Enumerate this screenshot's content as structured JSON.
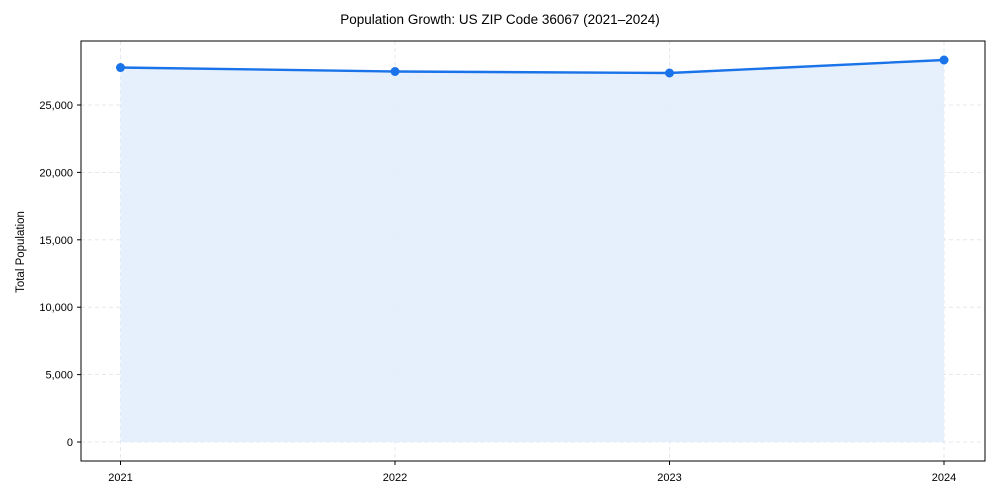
{
  "chart_data": {
    "type": "line",
    "title": "Population Growth: US ZIP Code 36067 (2021–2024)",
    "xlabel": "",
    "ylabel": "Total Population",
    "categories": [
      "2021",
      "2022",
      "2023",
      "2024"
    ],
    "series": [
      {
        "name": "Total Population",
        "values": [
          27780,
          27485,
          27374,
          28338
        ],
        "color": "#1a73e8",
        "fill": "#e3eefd"
      }
    ],
    "yticks": [
      0,
      5000,
      10000,
      15000,
      20000,
      25000
    ],
    "ytick_labels": [
      "0",
      "5,000",
      "10,000",
      "15,000",
      "20,000",
      "25,000"
    ],
    "ylim": [
      -1400,
      29500
    ],
    "grid": true,
    "legend": "none"
  }
}
